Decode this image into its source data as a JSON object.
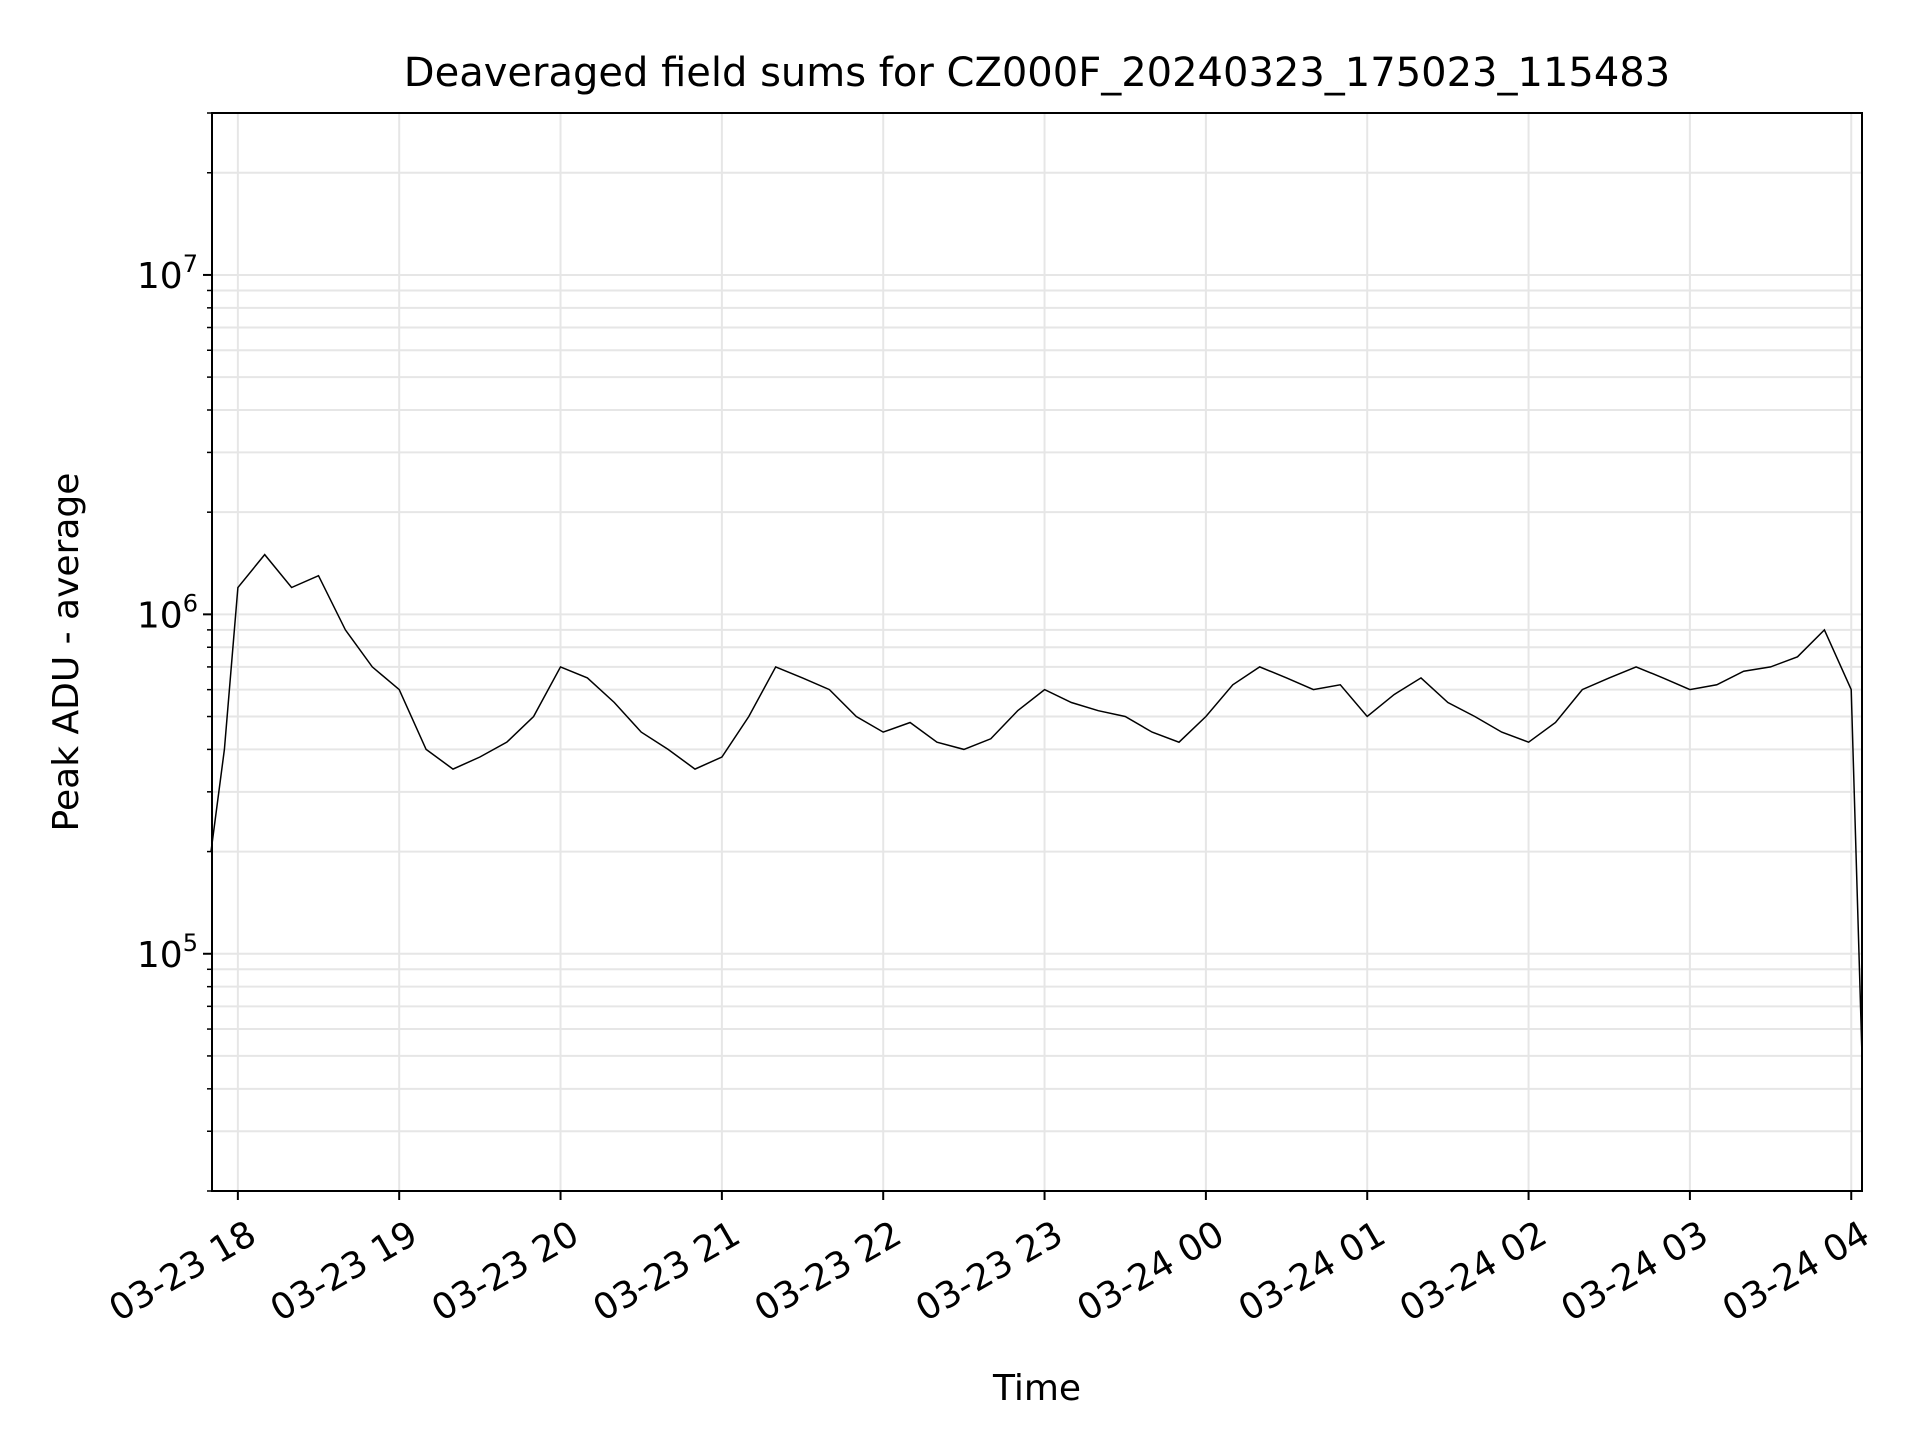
{
  "chart_data": {
    "type": "line",
    "title": "Deaveraged field sums for CZ000F_20240323_175023_115483",
    "xlabel": "Time",
    "ylabel": "Peak ADU - average",
    "yscale": "log",
    "ylim": [
      20000,
      30000000
    ],
    "xlim": [
      "2024-03-23 17:50:23",
      "2024-03-24 04:04:00"
    ],
    "grid": true,
    "line_color": "#000000",
    "x_ticks": [
      "03-23 18",
      "03-23 19",
      "03-23 20",
      "03-23 21",
      "03-23 22",
      "03-23 23",
      "03-24 00",
      "03-24 01",
      "03-24 02",
      "03-24 03",
      "03-24 04"
    ],
    "y_ticks": [
      {
        "base": "10",
        "exp": "5",
        "value": 100000
      },
      {
        "base": "10",
        "exp": "6",
        "value": 1000000
      },
      {
        "base": "10",
        "exp": "7",
        "value": 10000000
      }
    ],
    "series": [
      {
        "x": [
          "2024-03-23 17:50",
          "2024-03-23 17:55",
          "2024-03-23 18:00",
          "2024-03-23 18:10",
          "2024-03-23 18:20",
          "2024-03-23 18:30",
          "2024-03-23 18:40",
          "2024-03-23 18:50",
          "2024-03-23 19:00",
          "2024-03-23 19:10",
          "2024-03-23 19:20",
          "2024-03-23 19:30",
          "2024-03-23 19:40",
          "2024-03-23 19:50",
          "2024-03-23 20:00",
          "2024-03-23 20:10",
          "2024-03-23 20:20",
          "2024-03-23 20:30",
          "2024-03-23 20:40",
          "2024-03-23 20:50",
          "2024-03-23 21:00",
          "2024-03-23 21:10",
          "2024-03-23 21:20",
          "2024-03-23 21:30",
          "2024-03-23 21:40",
          "2024-03-23 21:50",
          "2024-03-23 22:00",
          "2024-03-23 22:10",
          "2024-03-23 22:20",
          "2024-03-23 22:30",
          "2024-03-23 22:40",
          "2024-03-23 22:50",
          "2024-03-23 23:00",
          "2024-03-23 23:10",
          "2024-03-23 23:20",
          "2024-03-23 23:30",
          "2024-03-23 23:40",
          "2024-03-23 23:50",
          "2024-03-24 00:00",
          "2024-03-24 00:10",
          "2024-03-24 00:20",
          "2024-03-24 00:30",
          "2024-03-24 00:40",
          "2024-03-24 00:50",
          "2024-03-24 01:00",
          "2024-03-24 01:10",
          "2024-03-24 01:20",
          "2024-03-24 01:30",
          "2024-03-24 01:40",
          "2024-03-24 01:50",
          "2024-03-24 02:00",
          "2024-03-24 02:10",
          "2024-03-24 02:20",
          "2024-03-24 02:30",
          "2024-03-24 02:40",
          "2024-03-24 02:50",
          "2024-03-24 03:00",
          "2024-03-24 03:10",
          "2024-03-24 03:20",
          "2024-03-24 03:30",
          "2024-03-24 03:40",
          "2024-03-24 03:50",
          "2024-03-24 04:00",
          "2024-03-24 04:04"
        ],
        "y": [
          200000,
          400000,
          1200000,
          1500000,
          1200000,
          1300000,
          900000,
          700000,
          600000,
          400000,
          350000,
          380000,
          420000,
          500000,
          700000,
          650000,
          550000,
          450000,
          400000,
          350000,
          380000,
          500000,
          700000,
          650000,
          600000,
          500000,
          450000,
          480000,
          420000,
          400000,
          430000,
          520000,
          600000,
          550000,
          520000,
          500000,
          450000,
          420000,
          500000,
          620000,
          700000,
          650000,
          600000,
          620000,
          500000,
          580000,
          650000,
          550000,
          500000,
          450000,
          420000,
          480000,
          600000,
          650000,
          700000,
          650000,
          600000,
          620000,
          680000,
          700000,
          750000,
          900000,
          600000,
          50000
        ]
      }
    ]
  }
}
